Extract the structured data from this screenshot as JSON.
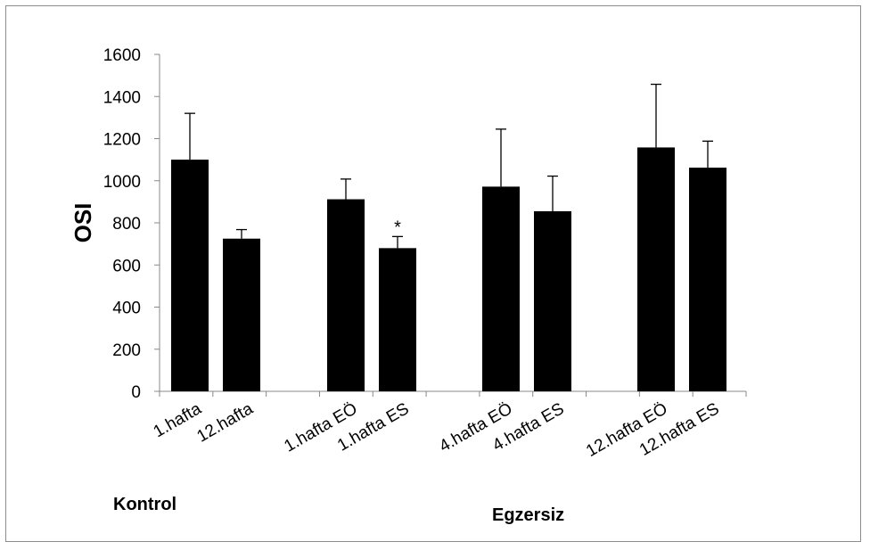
{
  "chart_data": {
    "type": "bar",
    "title": "",
    "xlabel": "",
    "ylabel": "OSI",
    "ylim": [
      0,
      1600
    ],
    "yticks": [
      0,
      200,
      400,
      600,
      800,
      1000,
      1200,
      1400,
      1600
    ],
    "grid": false,
    "legend": "none",
    "bar_color": "#000000",
    "categories": [
      "1.hafta",
      "12.hafta",
      "1.hafta EÖ",
      "1.hafta ES",
      "4.hafta EÖ",
      "4.hafta ES",
      "12.hafta EÖ",
      "12.hafta ES"
    ],
    "values": [
      1100,
      725,
      912,
      680,
      972,
      855,
      1158,
      1062
    ],
    "error_upper": [
      1320,
      768,
      1008,
      735,
      1245,
      1022,
      1458,
      1188
    ],
    "annotations": [
      {
        "category": "1.hafta ES",
        "text": "*"
      }
    ],
    "groups": [
      {
        "label": "Kontrol",
        "categories": [
          "1.hafta",
          "12.hafta"
        ]
      },
      {
        "label": "Egzersiz",
        "categories": [
          "1.hafta EÖ",
          "1.hafta ES",
          "4.hafta EÖ",
          "4.hafta ES",
          "12.hafta EÖ",
          "12.hafta ES"
        ]
      }
    ]
  }
}
